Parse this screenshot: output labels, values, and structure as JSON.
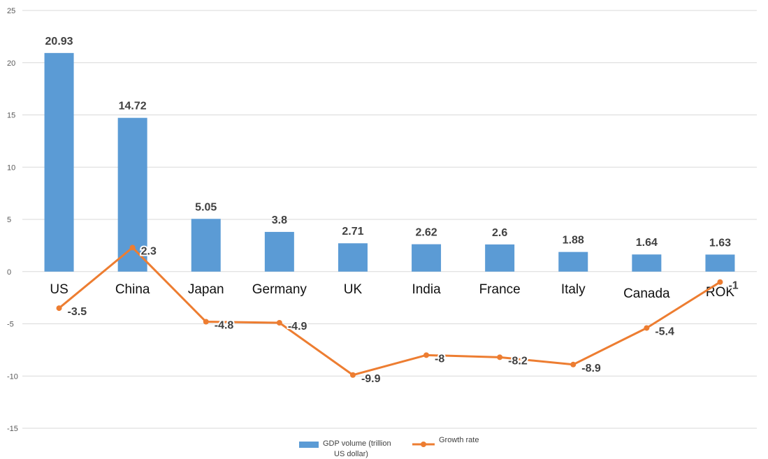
{
  "chart_data": {
    "type": "bar",
    "categories": [
      "US",
      "China",
      "Japan",
      "Germany",
      "UK",
      "India",
      "France",
      "Italy",
      "Canada",
      "ROK"
    ],
    "series": [
      {
        "name": "GDP volume (trillion US dollar)",
        "type": "bar",
        "values": [
          20.93,
          14.72,
          5.05,
          3.8,
          2.71,
          2.62,
          2.6,
          1.88,
          1.64,
          1.63
        ],
        "data_labels": [
          "20.93",
          "14.72",
          "5.05",
          "3.8",
          "2.71",
          "2.62",
          "2.6",
          "1.88",
          "1.64",
          "1.63"
        ]
      },
      {
        "name": "Growth rate",
        "type": "line",
        "values": [
          -3.5,
          2.3,
          -4.8,
          -4.9,
          -9.9,
          -8,
          -8.2,
          -8.9,
          -5.4,
          -1
        ],
        "data_labels": [
          "-3.5",
          "2.3",
          "-4.8",
          "-4.9",
          "-9.9",
          "-8",
          "-8.2",
          "-8.9",
          "-5.4",
          "-1"
        ]
      }
    ],
    "ylim": [
      -15,
      25
    ],
    "yticks": [
      25,
      20,
      15,
      10,
      5,
      0,
      -5,
      -10,
      -15
    ],
    "ytick_labels": [
      "25",
      "20",
      "15",
      "10",
      "5",
      "0",
      "-5",
      "-10",
      "-15"
    ],
    "legend": {
      "position": "bottom",
      "entries": [
        {
          "lines": [
            "GDP volume (trillion",
            "US dollar)"
          ]
        },
        {
          "lines": [
            "Growth rate"
          ]
        }
      ]
    },
    "grid": true,
    "colors": {
      "bar": "#5b9bd5",
      "line": "#ed7d31",
      "grid": "#d9d9d9"
    },
    "title": "",
    "xlabel": "",
    "ylabel": ""
  }
}
